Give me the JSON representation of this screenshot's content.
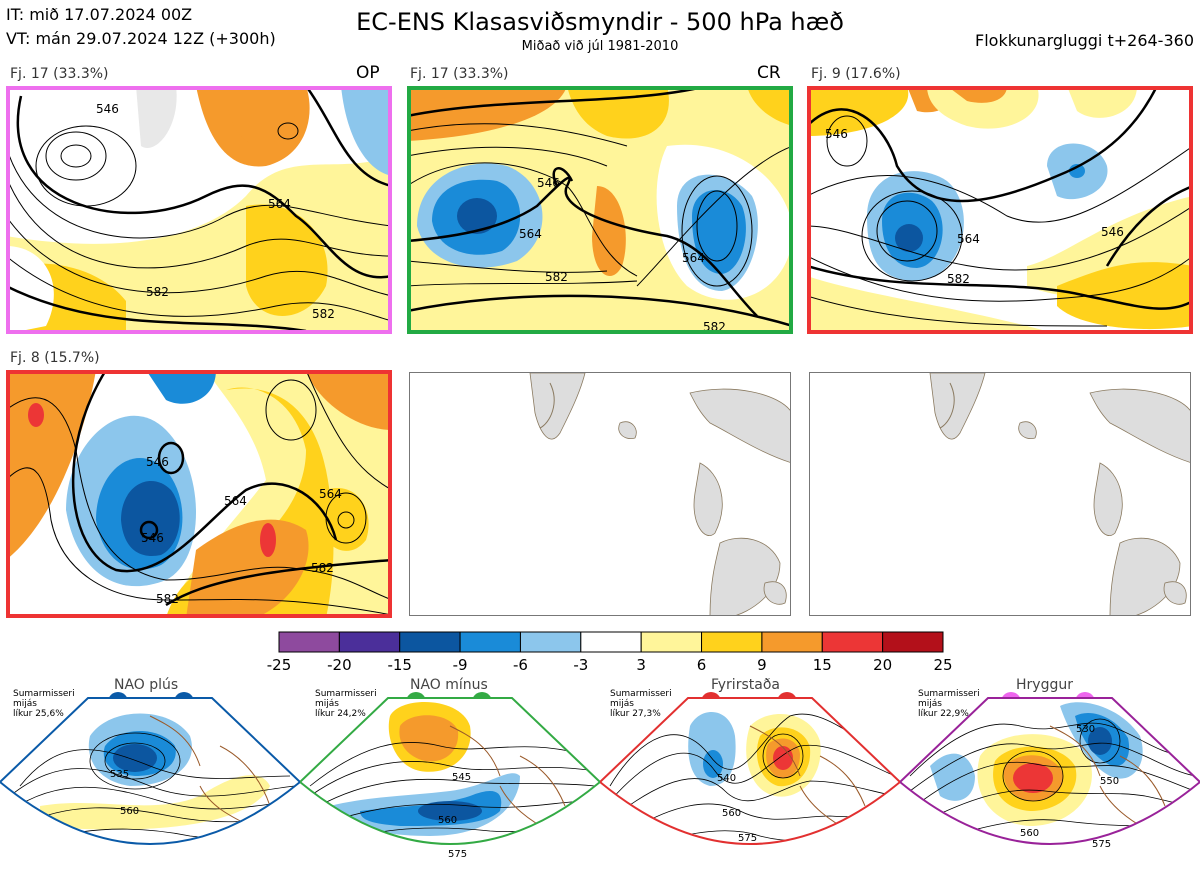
{
  "header": {
    "init_time": "IT: mið 17.07.2024 00Z",
    "valid_time": "VT: mán 29.07.2024 12Z  (+300h)",
    "title": "EC-ENS Klasasviðsmyndir - 500 hPa hæð",
    "subtitle": "Miðað við júl 1981-2010",
    "window": "Flokkunargluggi t+264-360"
  },
  "clusters": [
    {
      "label": "Fj. 17 (33.3%)",
      "tag": "OP",
      "border_color": "#ee6fee",
      "contour_labels": [
        "546",
        "564",
        "582",
        "582"
      ]
    },
    {
      "label": "Fj. 17 (33.3%)",
      "tag": "CR",
      "border_color": "#22aa44",
      "contour_labels": [
        "546",
        "564",
        "564",
        "582",
        "582"
      ]
    },
    {
      "label": "Fj. 9 (17.6%)",
      "tag": "",
      "border_color": "#ee3333",
      "contour_labels": [
        "546",
        "564",
        "582",
        "546"
      ]
    },
    {
      "label": "Fj. 8 (15.7%)",
      "tag": "",
      "border_color": "#ee3333",
      "contour_labels": [
        "546",
        "546",
        "564",
        "564",
        "582",
        "582"
      ]
    }
  ],
  "colorbar": {
    "ticks": [
      "-25",
      "-20",
      "-15",
      "-9",
      "-6",
      "-3",
      "3",
      "6",
      "9",
      "15",
      "20",
      "25"
    ],
    "colors": [
      "#8e4a9e",
      "#4b2f9a",
      "#0c56a0",
      "#1a8bd8",
      "#8cc6ec",
      "#ffffff",
      "#fff59a",
      "#ffd21c",
      "#f59a2c",
      "#ec3636",
      "#b3101a"
    ]
  },
  "regimes": [
    {
      "name": "NAO plús",
      "season": "Sumarmisseri",
      "mean": "mijás",
      "probability": "líkur 25,6%",
      "color": "#0a5aa8",
      "contour_labels": [
        "535",
        "560"
      ]
    },
    {
      "name": "NAO mínus",
      "season": "Sumarmisseri",
      "mean": "mijás",
      "probability": "líkur 24,2%",
      "color": "#33aa44",
      "contour_labels": [
        "545",
        "560",
        "575"
      ]
    },
    {
      "name": "Fyrirstaða",
      "season": "Sumarmisseri",
      "mean": "mijás",
      "probability": "líkur 27,3%",
      "color": "#e23030",
      "contour_labels": [
        "540",
        "560",
        "575"
      ]
    },
    {
      "name": "Hryggur",
      "season": "Sumarmisseri",
      "mean": "mijás",
      "probability": "líkur 22,9%",
      "color": "#ee66ee",
      "contour_labels": [
        "530",
        "550",
        "560",
        "575"
      ]
    }
  ],
  "chart_data": {
    "type": "heatmap",
    "title": "EC-ENS Klasasviðsmyndir - 500 hPa hæð",
    "subtitle": "Miðað við júl 1981-2010",
    "colorbar_ticks": [
      -25,
      -20,
      -15,
      -9,
      -6,
      -3,
      3,
      6,
      9,
      15,
      20,
      25
    ],
    "clusters": [
      {
        "label": "Fj. 17 (33.3%)",
        "members": 17,
        "probability_pct": 33.3,
        "tag": "OP"
      },
      {
        "label": "Fj. 17 (33.3%)",
        "members": 17,
        "probability_pct": 33.3,
        "tag": "CR"
      },
      {
        "label": "Fj. 9 (17.6%)",
        "members": 9,
        "probability_pct": 17.6
      },
      {
        "label": "Fj. 8 (15.7%)",
        "members": 8,
        "probability_pct": 15.7
      }
    ],
    "regimes": [
      {
        "name": "NAO plús",
        "probability_pct": 25.6
      },
      {
        "name": "NAO mínus",
        "probability_pct": 24.2
      },
      {
        "name": "Fyrirstaða",
        "probability_pct": 27.3
      },
      {
        "name": "Hryggur",
        "probability_pct": 22.9
      }
    ]
  }
}
